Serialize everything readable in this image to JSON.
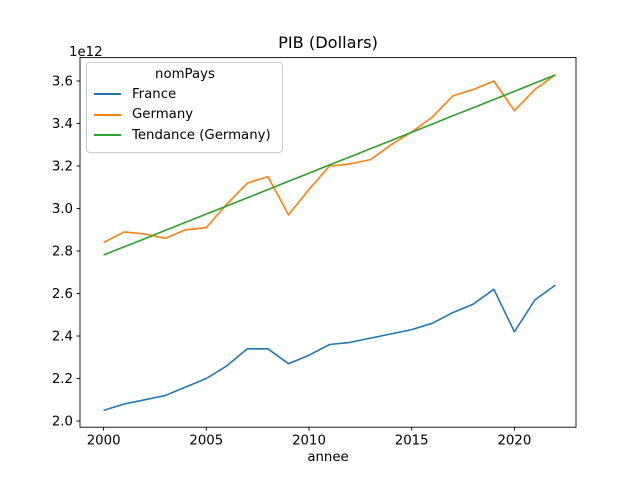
{
  "chart_data": {
    "type": "line",
    "title": "PIB (Dollars)",
    "xlabel": "annee",
    "ylabel": "",
    "y_offset_label": "1e12",
    "legend_title": "nomPays",
    "legend_position": "upper left",
    "grid": false,
    "xlim": [
      1998.85,
      2023.0
    ],
    "ylim": [
      1.971,
      3.71
    ],
    "x_ticks": [
      {
        "value": 2000,
        "label": "2000"
      },
      {
        "value": 2005,
        "label": "2005"
      },
      {
        "value": 2010,
        "label": "2010"
      },
      {
        "value": 2015,
        "label": "2015"
      },
      {
        "value": 2020,
        "label": "2020"
      }
    ],
    "y_ticks": [
      {
        "value": 2.0,
        "label": "2.0"
      },
      {
        "value": 2.2,
        "label": "2.2"
      },
      {
        "value": 2.4,
        "label": "2.4"
      },
      {
        "value": 2.6,
        "label": "2.6"
      },
      {
        "value": 2.8,
        "label": "2.8"
      },
      {
        "value": 3.0,
        "label": "3.0"
      },
      {
        "value": 3.2,
        "label": "3.2"
      },
      {
        "value": 3.4,
        "label": "3.4"
      },
      {
        "value": 3.6,
        "label": "3.6"
      }
    ],
    "x": [
      2000,
      2001,
      2002,
      2003,
      2004,
      2005,
      2006,
      2007,
      2008,
      2009,
      2010,
      2011,
      2012,
      2013,
      2014,
      2015,
      2016,
      2017,
      2018,
      2019,
      2020,
      2021,
      2022
    ],
    "series": [
      {
        "name": "France",
        "color": "#1f77b4",
        "values": [
          2.05,
          2.08,
          2.1,
          2.12,
          2.16,
          2.2,
          2.26,
          2.34,
          2.34,
          2.27,
          2.31,
          2.36,
          2.37,
          2.39,
          2.41,
          2.43,
          2.46,
          2.51,
          2.55,
          2.62,
          2.42,
          2.57,
          2.64
        ]
      },
      {
        "name": "Germany",
        "color": "#ff7f0e",
        "values": [
          2.84,
          2.89,
          2.88,
          2.86,
          2.9,
          2.91,
          3.02,
          3.12,
          3.15,
          2.97,
          3.09,
          3.2,
          3.21,
          3.23,
          3.3,
          3.36,
          3.43,
          3.53,
          3.56,
          3.6,
          3.46,
          3.56,
          3.63
        ]
      },
      {
        "name": "Tendance (Germany)",
        "color": "#2ca02c",
        "values": [
          2.781,
          2.82,
          2.858,
          2.897,
          2.935,
          2.974,
          3.012,
          3.051,
          3.089,
          3.128,
          3.166,
          3.205,
          3.243,
          3.282,
          3.32,
          3.359,
          3.397,
          3.436,
          3.474,
          3.513,
          3.551,
          3.59,
          3.628
        ]
      }
    ]
  }
}
